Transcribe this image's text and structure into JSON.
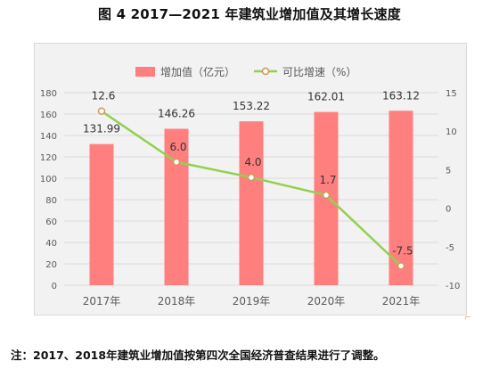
{
  "title": "图 4 2017—2021 年建筑业增加值及其增长速度",
  "note": "注：2017、2018年建筑业增加值按第四次全国经济普查结果进行了调整。",
  "colors": {
    "bar": "#ff7f7f",
    "line": "#92d050",
    "marker_fill": "#ffffff",
    "marker_stroke": "#c99a5b",
    "grid": "#d9d9d9",
    "frame_bg": "#f2f2f2"
  },
  "chart_data": {
    "type": "bar",
    "title": "图 4 2017—2021 年建筑业增加值及其增长速度",
    "legend_position": "top",
    "grid": true,
    "categories": [
      "2017年",
      "2018年",
      "2019年",
      "2020年",
      "2021年"
    ],
    "series": [
      {
        "name": "增加值（亿元）",
        "type": "bar",
        "axis": "left",
        "values": [
          131.99,
          146.26,
          153.22,
          162.01,
          163.12
        ],
        "labels": [
          "131.99",
          "146.26",
          "153.22",
          "162.01",
          "163.12"
        ]
      },
      {
        "name": "可比增速（%）",
        "type": "line",
        "axis": "right",
        "values": [
          12.6,
          6.0,
          4.0,
          1.7,
          -7.5
        ],
        "labels": [
          "12.6",
          "6.0",
          "4.0",
          "1.7",
          "-7.5"
        ]
      }
    ],
    "y_left": {
      "lim": [
        0,
        180
      ],
      "ticks": [
        0,
        20,
        40,
        60,
        80,
        100,
        120,
        140,
        160,
        180
      ]
    },
    "y_right": {
      "lim": [
        -10,
        15
      ],
      "ticks": [
        -10,
        -5,
        0,
        5,
        10,
        15
      ]
    }
  }
}
